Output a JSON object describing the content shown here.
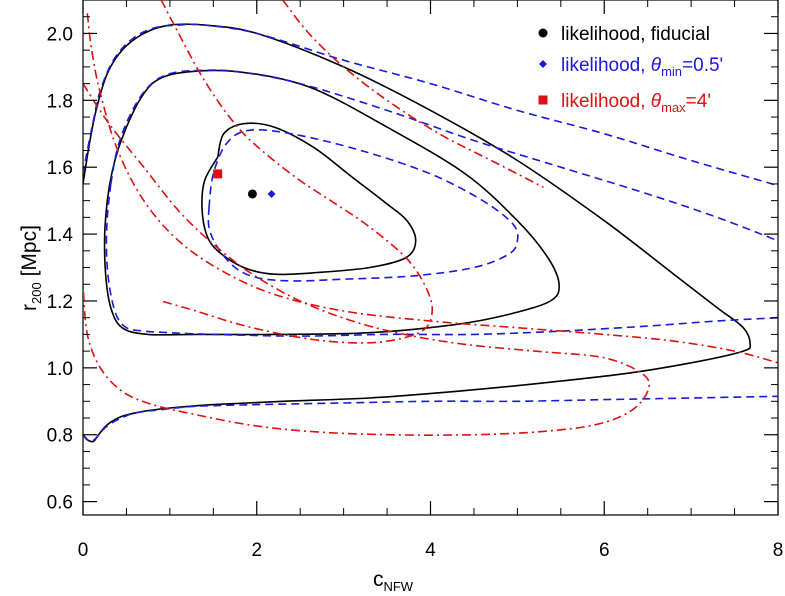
{
  "chart_data": {
    "type": "line",
    "xlabel": {
      "main": "c",
      "sub": "NFW"
    },
    "ylabel": {
      "main": "r",
      "sub": "200",
      "rest": " [Mpc]"
    },
    "xlim": [
      0,
      8
    ],
    "ylim": [
      0.56,
      2.1
    ],
    "xticks": [
      0,
      2,
      4,
      6,
      8
    ],
    "xtick_labels": [
      "0",
      "2",
      "4",
      "6",
      "8"
    ],
    "yticks": [
      0.6,
      0.8,
      1.0,
      1.2,
      1.4,
      1.6,
      1.8,
      2.0
    ],
    "ytick_labels": [
      "0.6",
      "0.8",
      "1.0",
      "1.2",
      "1.4",
      "1.6",
      "1.8",
      "2.0"
    ],
    "grid": false,
    "legend_position": "top-right",
    "colors": {
      "fiducial": "#000000",
      "theta_min": "#1a1adb",
      "theta_max": "#dd1111"
    },
    "legend": [
      {
        "key": "fiducial",
        "marker": "circle",
        "label": "likelihood, fiducial"
      },
      {
        "key": "theta_min",
        "marker": "diamond",
        "label_prefix": "likelihood, ",
        "symbol": "θ",
        "sub": "min",
        "suffix": "=0.5'"
      },
      {
        "key": "theta_max",
        "marker": "square",
        "label_prefix": "likelihood, ",
        "symbol": "θ",
        "sub": "max",
        "suffix": "=4'"
      }
    ],
    "points": [
      {
        "key": "fiducial",
        "marker": "circle",
        "x": 1.95,
        "y": 1.52
      },
      {
        "key": "theta_min",
        "marker": "diamond",
        "x": 2.17,
        "y": 1.52
      },
      {
        "key": "theta_max",
        "marker": "square",
        "x": 1.55,
        "y": 1.58
      }
    ],
    "contours": [
      {
        "key": "fiducial",
        "style": "solid",
        "level": "inner",
        "points": [
          [
            1.55,
            1.63
          ],
          [
            1.62,
            1.7
          ],
          [
            1.85,
            1.73
          ],
          [
            2.2,
            1.72
          ],
          [
            2.65,
            1.66
          ],
          [
            3.1,
            1.57
          ],
          [
            3.5,
            1.49
          ],
          [
            3.73,
            1.44
          ],
          [
            3.83,
            1.38
          ],
          [
            3.72,
            1.33
          ],
          [
            3.3,
            1.3
          ],
          [
            2.7,
            1.285
          ],
          [
            2.2,
            1.28
          ],
          [
            1.85,
            1.3
          ],
          [
            1.55,
            1.35
          ],
          [
            1.42,
            1.4
          ],
          [
            1.37,
            1.48
          ],
          [
            1.4,
            1.56
          ],
          [
            1.55,
            1.63
          ]
        ]
      },
      {
        "key": "fiducial",
        "style": "solid",
        "level": "middle",
        "points": [
          [
            0.5,
            1.72
          ],
          [
            0.65,
            1.8
          ],
          [
            0.85,
            1.86
          ],
          [
            1.2,
            1.885
          ],
          [
            1.8,
            1.885
          ],
          [
            2.6,
            1.84
          ],
          [
            3.5,
            1.72
          ],
          [
            4.4,
            1.58
          ],
          [
            5.0,
            1.44
          ],
          [
            5.35,
            1.33
          ],
          [
            5.48,
            1.25
          ],
          [
            5.38,
            1.2
          ],
          [
            4.9,
            1.16
          ],
          [
            4.3,
            1.13
          ],
          [
            3.3,
            1.105
          ],
          [
            2.2,
            1.1
          ],
          [
            1.3,
            1.1
          ],
          [
            0.75,
            1.1
          ],
          [
            0.45,
            1.12
          ],
          [
            0.32,
            1.18
          ],
          [
            0.26,
            1.28
          ],
          [
            0.25,
            1.4
          ],
          [
            0.28,
            1.5
          ],
          [
            0.33,
            1.58
          ],
          [
            0.4,
            1.65
          ],
          [
            0.5,
            1.72
          ]
        ]
      },
      {
        "key": "fiducial",
        "style": "solid",
        "level": "outer",
        "points": [
          [
            0.0,
            1.55
          ],
          [
            0.03,
            1.6
          ],
          [
            0.08,
            1.68
          ],
          [
            0.16,
            1.78
          ],
          [
            0.28,
            1.88
          ],
          [
            0.45,
            1.95
          ],
          [
            0.7,
            2.0
          ],
          [
            1.0,
            2.025
          ],
          [
            1.4,
            2.025
          ],
          [
            2.0,
            2.0
          ],
          [
            3.0,
            1.9
          ],
          [
            4.0,
            1.77
          ],
          [
            5.0,
            1.62
          ],
          [
            6.0,
            1.44
          ],
          [
            6.8,
            1.28
          ],
          [
            7.3,
            1.18
          ],
          [
            7.6,
            1.12
          ],
          [
            7.68,
            1.07
          ],
          [
            7.6,
            1.05
          ],
          [
            7.1,
            1.02
          ],
          [
            6.3,
            0.985
          ],
          [
            5.3,
            0.955
          ],
          [
            4.3,
            0.93
          ],
          [
            3.3,
            0.91
          ],
          [
            2.3,
            0.9
          ],
          [
            1.5,
            0.89
          ],
          [
            1.0,
            0.88
          ],
          [
            0.7,
            0.87
          ],
          [
            0.45,
            0.855
          ],
          [
            0.28,
            0.83
          ],
          [
            0.18,
            0.8
          ],
          [
            0.12,
            0.78
          ],
          [
            0.05,
            0.785
          ],
          [
            0.0,
            0.8
          ]
        ]
      },
      {
        "key": "theta_min",
        "style": "dashed",
        "level": "inner",
        "points": [
          [
            1.45,
            1.48
          ],
          [
            1.5,
            1.58
          ],
          [
            1.65,
            1.67
          ],
          [
            1.9,
            1.71
          ],
          [
            2.4,
            1.7
          ],
          [
            3.2,
            1.65
          ],
          [
            4.0,
            1.58
          ],
          [
            4.6,
            1.5
          ],
          [
            4.95,
            1.43
          ],
          [
            5.0,
            1.38
          ],
          [
            4.9,
            1.34
          ],
          [
            4.5,
            1.3
          ],
          [
            3.8,
            1.275
          ],
          [
            3.0,
            1.265
          ],
          [
            2.4,
            1.26
          ],
          [
            2.0,
            1.27
          ],
          [
            1.75,
            1.3
          ],
          [
            1.55,
            1.36
          ],
          [
            1.45,
            1.42
          ],
          [
            1.45,
            1.48
          ]
        ]
      },
      {
        "key": "theta_min",
        "style": "dashed",
        "level": "middle_open",
        "points": [
          [
            0.32,
            1.55
          ],
          [
            0.4,
            1.66
          ],
          [
            0.55,
            1.76
          ],
          [
            0.75,
            1.84
          ],
          [
            1.0,
            1.88
          ],
          [
            1.4,
            1.89
          ],
          [
            1.8,
            1.885
          ],
          [
            2.5,
            1.85
          ],
          [
            3.5,
            1.77
          ],
          [
            4.5,
            1.68
          ],
          [
            5.5,
            1.6
          ],
          [
            6.5,
            1.52
          ],
          [
            7.3,
            1.45
          ],
          [
            8.0,
            1.38
          ]
        ]
      },
      {
        "key": "theta_min",
        "style": "dashed",
        "level": "middle_open",
        "points": [
          [
            0.32,
            1.55
          ],
          [
            0.28,
            1.45
          ],
          [
            0.27,
            1.35
          ],
          [
            0.3,
            1.25
          ],
          [
            0.38,
            1.16
          ],
          [
            0.5,
            1.12
          ],
          [
            0.7,
            1.11
          ],
          [
            1.0,
            1.105
          ],
          [
            1.5,
            1.1
          ],
          [
            2.5,
            1.095
          ],
          [
            3.5,
            1.1
          ],
          [
            4.5,
            1.1
          ],
          [
            5.5,
            1.11
          ],
          [
            6.5,
            1.125
          ],
          [
            7.3,
            1.14
          ],
          [
            8.0,
            1.15
          ]
        ]
      },
      {
        "key": "theta_min",
        "style": "dashed",
        "level": "outer_open",
        "points": [
          [
            0.0,
            1.58
          ],
          [
            0.05,
            1.65
          ],
          [
            0.12,
            1.74
          ],
          [
            0.2,
            1.83
          ],
          [
            0.35,
            1.92
          ],
          [
            0.55,
            1.98
          ],
          [
            0.8,
            2.015
          ],
          [
            1.1,
            2.025
          ],
          [
            1.4,
            2.025
          ],
          [
            2.0,
            2.0
          ],
          [
            3.0,
            1.92
          ],
          [
            4.0,
            1.85
          ],
          [
            5.0,
            1.77
          ],
          [
            6.0,
            1.7
          ],
          [
            7.0,
            1.62
          ],
          [
            8.0,
            1.545
          ]
        ]
      },
      {
        "key": "theta_min",
        "style": "dashed",
        "level": "outer_open",
        "points": [
          [
            0.0,
            0.8
          ],
          [
            0.08,
            0.78
          ],
          [
            0.15,
            0.79
          ],
          [
            0.25,
            0.82
          ],
          [
            0.4,
            0.845
          ],
          [
            0.6,
            0.865
          ],
          [
            0.9,
            0.875
          ],
          [
            1.3,
            0.885
          ],
          [
            2.0,
            0.89
          ],
          [
            3.0,
            0.895
          ],
          [
            4.0,
            0.9
          ],
          [
            5.0,
            0.9
          ],
          [
            6.0,
            0.905
          ],
          [
            7.0,
            0.91
          ],
          [
            8.0,
            0.915
          ]
        ]
      },
      {
        "key": "theta_max",
        "style": "dashdot",
        "level": "inner",
        "points": [
          [
            0.9,
            2.1
          ],
          [
            1.1,
            2.0
          ],
          [
            1.35,
            1.88
          ],
          [
            1.6,
            1.78
          ],
          [
            1.85,
            1.7
          ],
          [
            2.15,
            1.63
          ],
          [
            2.5,
            1.56
          ],
          [
            2.85,
            1.5
          ],
          [
            3.2,
            1.44
          ],
          [
            3.5,
            1.38
          ],
          [
            3.75,
            1.32
          ],
          [
            3.93,
            1.25
          ],
          [
            4.02,
            1.18
          ],
          [
            3.95,
            1.12
          ],
          [
            3.7,
            1.09
          ],
          [
            3.3,
            1.075
          ],
          [
            2.8,
            1.08
          ],
          [
            2.3,
            1.1
          ],
          [
            1.8,
            1.13
          ],
          [
            1.3,
            1.17
          ],
          [
            0.9,
            1.2
          ]
        ]
      },
      {
        "key": "theta_max",
        "style": "dashdot",
        "level": "middle",
        "points": [
          [
            0.0,
            1.85
          ],
          [
            0.3,
            1.73
          ],
          [
            0.7,
            1.6
          ],
          [
            1.1,
            1.47
          ],
          [
            1.5,
            1.37
          ],
          [
            1.95,
            1.28
          ],
          [
            2.5,
            1.2
          ],
          [
            3.1,
            1.14
          ],
          [
            3.7,
            1.1
          ],
          [
            4.4,
            1.07
          ],
          [
            5.2,
            1.05
          ],
          [
            6.0,
            1.03
          ],
          [
            6.45,
            0.98
          ],
          [
            6.5,
            0.93
          ],
          [
            6.3,
            0.87
          ],
          [
            5.9,
            0.83
          ],
          [
            5.3,
            0.81
          ],
          [
            4.5,
            0.8
          ],
          [
            3.5,
            0.8
          ],
          [
            2.6,
            0.81
          ],
          [
            1.9,
            0.83
          ],
          [
            1.3,
            0.86
          ],
          [
            0.8,
            0.89
          ],
          [
            0.45,
            0.93
          ],
          [
            0.2,
            1.0
          ],
          [
            0.05,
            1.1
          ],
          [
            0.0,
            1.25
          ]
        ]
      },
      {
        "key": "theta_max",
        "style": "dashdot",
        "level": "outer_open",
        "points": [
          [
            0.05,
            2.06
          ],
          [
            0.1,
            1.95
          ],
          [
            0.2,
            1.82
          ],
          [
            0.4,
            1.65
          ],
          [
            0.7,
            1.5
          ],
          [
            1.1,
            1.38
          ],
          [
            1.6,
            1.29
          ],
          [
            2.2,
            1.22
          ],
          [
            3.0,
            1.17
          ],
          [
            4.0,
            1.14
          ],
          [
            5.0,
            1.12
          ],
          [
            6.0,
            1.1
          ],
          [
            6.8,
            1.08
          ],
          [
            7.5,
            1.05
          ],
          [
            8.0,
            1.015
          ]
        ]
      },
      {
        "key": "theta_max",
        "style": "dashdot",
        "level": "outer_open",
        "points": [
          [
            2.3,
            2.1
          ],
          [
            2.6,
            2.0
          ],
          [
            3.0,
            1.9
          ],
          [
            3.5,
            1.8
          ],
          [
            4.1,
            1.7
          ],
          [
            4.7,
            1.62
          ],
          [
            5.3,
            1.54
          ]
        ]
      }
    ]
  }
}
